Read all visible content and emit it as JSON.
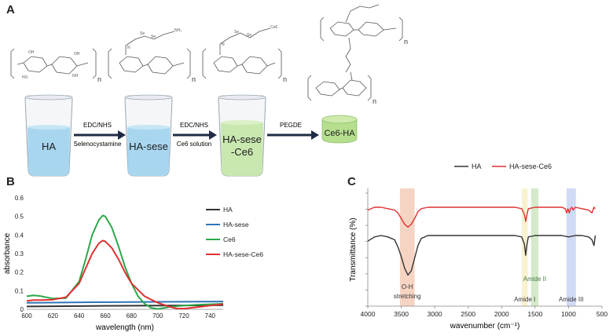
{
  "panel_letters": {
    "a": "A",
    "b": "B",
    "c": "C"
  },
  "scheme": {
    "beakers": [
      {
        "label_lines": [
          "HA"
        ],
        "fill": "#a9d6ef"
      },
      {
        "label_lines": [
          "HA-sese"
        ],
        "fill": "#a9d6ef"
      },
      {
        "label_lines": [
          "HA-sese",
          "-Ce6"
        ],
        "fill": "#c9e8b0"
      }
    ],
    "product": {
      "label": "Ce6-HA",
      "fill": "#b5df8e"
    },
    "arrows": [
      {
        "top": "EDC/NHS",
        "bottom": "Selenocystamine"
      },
      {
        "top": "EDC/NHS",
        "bottom": "Ce6 solution"
      },
      {
        "top": "PEGDE",
        "bottom": ""
      }
    ],
    "structure_labels": {
      "n": "n",
      "nh2": "NH₂",
      "se": "Se",
      "ce6": "Ce6"
    }
  },
  "chart_data": [
    {
      "type": "line",
      "title": "",
      "xlabel": "wavelength (nm)",
      "ylabel": "absorbance",
      "xlim": [
        600,
        750
      ],
      "ylim": [
        0,
        0.6
      ],
      "xticks": [
        600,
        620,
        640,
        660,
        680,
        700,
        720,
        740
      ],
      "yticks": [
        0,
        0.1,
        0.2,
        0.3,
        0.4,
        0.5,
        0.6
      ],
      "ytick_labels": [
        "0",
        "0.1",
        "0.2",
        "0.3",
        "0.4",
        "0.5",
        "0.6"
      ],
      "legend_position": "right",
      "series": [
        {
          "name": "HA",
          "color": "#333333",
          "x": [
            600,
            650,
            700,
            750
          ],
          "y": [
            0.015,
            0.018,
            0.02,
            0.022
          ]
        },
        {
          "name": "HA-sese",
          "color": "#2e75b6",
          "x": [
            600,
            650,
            700,
            750
          ],
          "y": [
            0.035,
            0.038,
            0.04,
            0.042
          ]
        },
        {
          "name": "Ce6",
          "color": "#2ca84a",
          "x": [
            600,
            605,
            610,
            620,
            630,
            640,
            645,
            650,
            655,
            658,
            660,
            665,
            670,
            675,
            680,
            685,
            690,
            695,
            700,
            705,
            710,
            720,
            730,
            740,
            750
          ],
          "y": [
            0.07,
            0.075,
            0.072,
            0.058,
            0.06,
            0.15,
            0.27,
            0.4,
            0.48,
            0.505,
            0.5,
            0.44,
            0.34,
            0.23,
            0.14,
            0.07,
            0.03,
            0.008,
            0.002,
            0.008,
            0.014,
            0.02,
            0.024,
            0.027,
            0.03
          ]
        },
        {
          "name": "HA-sese-Ce6",
          "color": "#e03030",
          "x": [
            600,
            605,
            610,
            620,
            630,
            640,
            645,
            650,
            655,
            658,
            660,
            665,
            670,
            675,
            680,
            690,
            700,
            710,
            715,
            720,
            730,
            740,
            750
          ],
          "y": [
            0.045,
            0.05,
            0.05,
            0.052,
            0.065,
            0.14,
            0.22,
            0.3,
            0.355,
            0.37,
            0.365,
            0.33,
            0.27,
            0.2,
            0.14,
            0.07,
            0.035,
            0.012,
            0.004,
            0.004,
            0.012,
            0.02,
            0.028
          ]
        }
      ]
    },
    {
      "type": "line",
      "title": "",
      "xlabel": "wavenumber (cm⁻¹)",
      "ylabel": "Transmittance (%)",
      "xlim": [
        4000,
        500
      ],
      "xticks": [
        4000,
        3500,
        3000,
        2500,
        2000,
        1500,
        1000,
        500
      ],
      "y_ticks_shown": false,
      "legend_position": "top",
      "bands": [
        {
          "label_lines": [
            "O-H",
            "stretching"
          ],
          "from": 3520,
          "to": 3300,
          "color": "#f3cdb8"
        },
        {
          "label_lines": [
            "Amide I"
          ],
          "from": 1700,
          "to": 1610,
          "color": "#f7f0c8"
        },
        {
          "label_lines": [
            "Amide II"
          ],
          "from": 1560,
          "to": 1450,
          "color": "#cfe6c2"
        },
        {
          "label_lines": [
            "Amide III"
          ],
          "from": 1030,
          "to": 890,
          "color": "#c9d4f3"
        }
      ],
      "series": [
        {
          "name": "HA",
          "color": "#333333",
          "x": [
            4000,
            3900,
            3800,
            3700,
            3600,
            3550,
            3500,
            3450,
            3400,
            3350,
            3300,
            3250,
            3200,
            3100,
            3000,
            2900,
            2500,
            2000,
            1800,
            1700,
            1660,
            1640,
            1620,
            1600,
            1500,
            1400,
            1300,
            1200,
            1100,
            1000,
            900,
            800,
            700,
            650,
            620,
            600
          ],
          "y": [
            66,
            69,
            70,
            69,
            67,
            62,
            55,
            47,
            42,
            45,
            54,
            63,
            68,
            70,
            70,
            70,
            70,
            70,
            70,
            69,
            64,
            56,
            64,
            69,
            70,
            70,
            70,
            70,
            70,
            69,
            70,
            70,
            69,
            67,
            63,
            70
          ]
        },
        {
          "name": "HA-sese-Ce6",
          "color": "#e03030",
          "x": [
            4000,
            3900,
            3800,
            3700,
            3600,
            3550,
            3500,
            3450,
            3400,
            3350,
            3300,
            3250,
            3200,
            3100,
            3000,
            2900,
            2500,
            2000,
            1800,
            1700,
            1660,
            1640,
            1620,
            1600,
            1500,
            1400,
            1300,
            1200,
            1100,
            1050,
            1030,
            1010,
            990,
            970,
            950,
            930,
            900,
            800,
            700,
            650,
            620,
            600
          ],
          "y": [
            88,
            90,
            90,
            89,
            88,
            86,
            82,
            78,
            76,
            78,
            82,
            87,
            89,
            90,
            90,
            90,
            90,
            90,
            90,
            89,
            85,
            80,
            85,
            89,
            90,
            90,
            90,
            90,
            90,
            89,
            86,
            89,
            86,
            89,
            90,
            88,
            90,
            89,
            88,
            86,
            90,
            89
          ]
        }
      ]
    }
  ]
}
